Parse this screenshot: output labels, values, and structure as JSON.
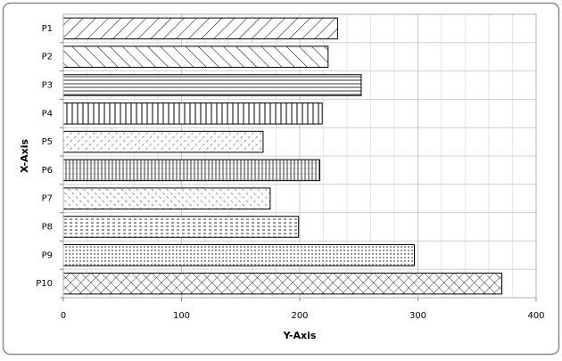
{
  "chart_data": {
    "type": "barh",
    "x_label": "Y-Axis",
    "y_label": "X-Axis",
    "categories": [
      "P1",
      "P2",
      "P3",
      "P4",
      "P5",
      "P6",
      "P7",
      "P8",
      "P9",
      "P10"
    ],
    "values": [
      232,
      224,
      252,
      219,
      169,
      217,
      175,
      199,
      297,
      371
    ],
    "color": "#ffffff",
    "xlim": [
      0,
      400
    ],
    "xticks": [
      0,
      100,
      200,
      300,
      400
    ],
    "xminor_ticks": [
      20,
      40,
      60,
      80,
      120,
      140,
      160,
      180,
      220,
      240,
      260,
      280,
      320,
      340,
      360,
      380
    ],
    "grid": true
  }
}
